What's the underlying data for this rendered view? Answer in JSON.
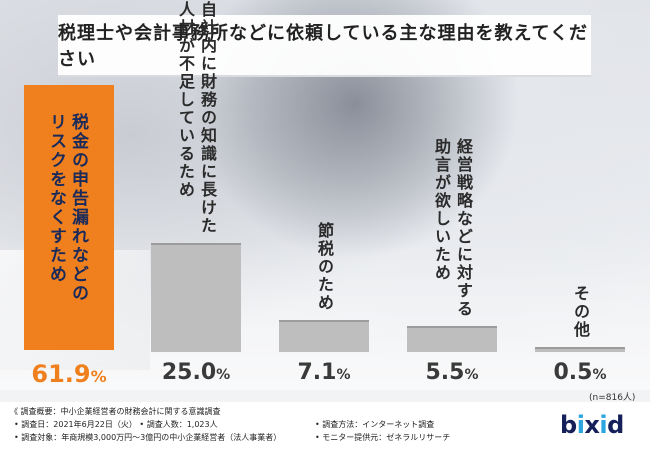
{
  "title": "税理士や会計事務所などに依頼している主な理由を教えてください",
  "chart_data": {
    "type": "bar",
    "title": "税理士や会計事務所などに依頼している主な理由を教えてください",
    "categories": [
      "税金の申告漏れなどのリスクをなくすため",
      "自社内に財務の知識に長けた人材が不足しているため",
      "節税のため",
      "経営戦略などに対する助言が欲しいため",
      "その他"
    ],
    "label_lines": [
      [
        "税金の申告漏れなどの",
        "リスクをなくすため"
      ],
      [
        "自社内に財務の知識に長けた",
        "人材が不足しているため"
      ],
      [
        "節税のため"
      ],
      [
        "経営戦略などに対する",
        "助言が欲しいため"
      ],
      [
        "その他"
      ]
    ],
    "values": [
      61.9,
      25.0,
      7.1,
      5.5,
      0.5
    ],
    "value_labels": [
      "61.9",
      "25.0",
      "7.1",
      "5.5",
      "0.5"
    ],
    "unit": "%",
    "highlight_index": 0,
    "colors": {
      "highlight": "#f0801e",
      "default": "#bebebe",
      "highlight_value": "#f0801e",
      "value": "#3a3a3a"
    },
    "ylim": [
      0,
      61.9
    ],
    "grid": false,
    "legend": "none"
  },
  "sample_note": "(n=816人)",
  "footer": {
    "heading": "《 調査概要：中小企業経営者の財務会計に関する意識調査",
    "left": [
      "• 調査日：2021年6月22日（火） • 調査人数：1,023人",
      "• 調査対象：年商規模3,000万円～3億円の中小企業経営者（法人事業者）"
    ],
    "right": [
      "• 調査方法：インターネット調査",
      "• モニター提供元：ゼネラルリサーチ"
    ]
  },
  "logo": {
    "text": "bixid",
    "color": "#15205a",
    "accent": "#2ba6e0"
  }
}
